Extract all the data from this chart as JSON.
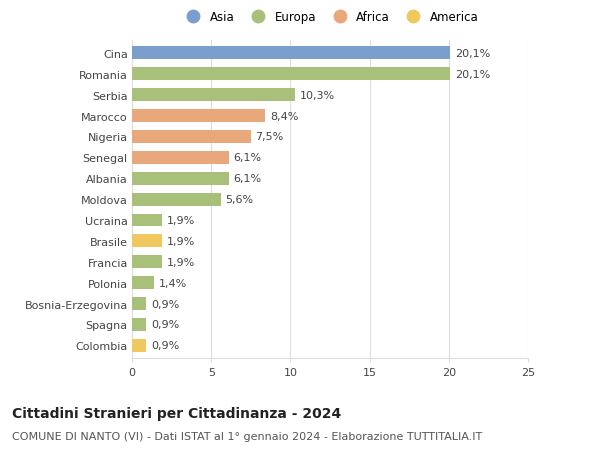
{
  "categories": [
    "Cina",
    "Romania",
    "Serbia",
    "Marocco",
    "Nigeria",
    "Senegal",
    "Albania",
    "Moldova",
    "Ucraina",
    "Brasile",
    "Francia",
    "Polonia",
    "Bosnia-Erzegovina",
    "Spagna",
    "Colombia"
  ],
  "values": [
    20.1,
    20.1,
    10.3,
    8.4,
    7.5,
    6.1,
    6.1,
    5.6,
    1.9,
    1.9,
    1.9,
    1.4,
    0.9,
    0.9,
    0.9
  ],
  "labels": [
    "20,1%",
    "20,1%",
    "10,3%",
    "8,4%",
    "7,5%",
    "6,1%",
    "6,1%",
    "5,6%",
    "1,9%",
    "1,9%",
    "1,9%",
    "1,4%",
    "0,9%",
    "0,9%",
    "0,9%"
  ],
  "continents": [
    "Asia",
    "Europa",
    "Europa",
    "Africa",
    "Africa",
    "Africa",
    "Europa",
    "Europa",
    "Europa",
    "America",
    "Europa",
    "Europa",
    "Europa",
    "Europa",
    "America"
  ],
  "colors": {
    "Asia": "#7b9fcc",
    "Europa": "#a8c07a",
    "Africa": "#e8a87c",
    "America": "#f0c860"
  },
  "legend_order": [
    "Asia",
    "Europa",
    "Africa",
    "America"
  ],
  "title": "Cittadini Stranieri per Cittadinanza - 2024",
  "subtitle": "COMUNE DI NANTO (VI) - Dati ISTAT al 1° gennaio 2024 - Elaborazione TUTTITALIA.IT",
  "xlim": [
    0,
    25
  ],
  "xticks": [
    0,
    5,
    10,
    15,
    20,
    25
  ],
  "background_color": "#ffffff",
  "grid_color": "#dddddd",
  "bar_height": 0.62,
  "title_fontsize": 10,
  "subtitle_fontsize": 8,
  "label_fontsize": 8,
  "tick_fontsize": 8,
  "legend_fontsize": 8.5
}
